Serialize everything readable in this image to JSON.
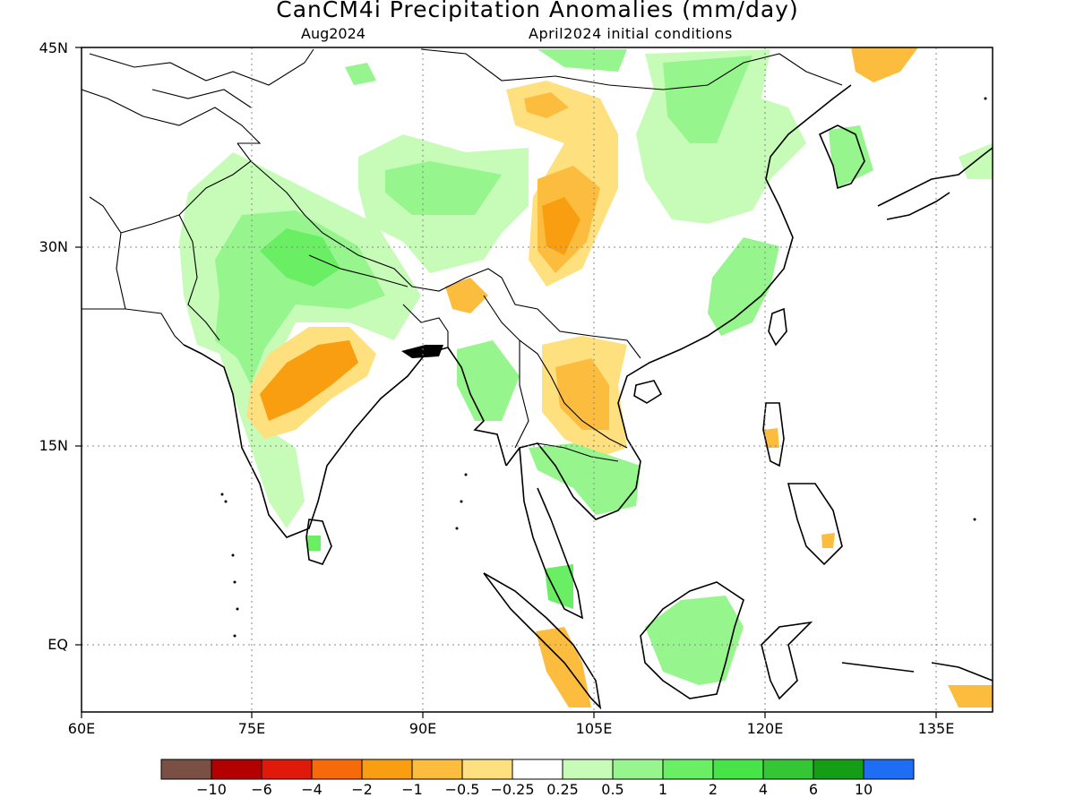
{
  "title": "CanCM4i Precipitation Anomalies (mm/day)",
  "subtitle_left": "Aug2024",
  "subtitle_right": "April2024 initial conditions",
  "axes": {
    "lon_ticks": [
      "60E",
      "75E",
      "90E",
      "105E",
      "120E",
      "135E"
    ],
    "lat_ticks": [
      "45N",
      "30N",
      "15N",
      "EQ"
    ],
    "lon_range": [
      60,
      140
    ],
    "lat_range": [
      -5,
      45
    ]
  },
  "colorbar": {
    "colors": [
      "#7a5044",
      "#b30000",
      "#e01a0a",
      "#f76a0a",
      "#f99e10",
      "#fcbd3e",
      "#fee17e",
      "#ffffff",
      "#c7fcb8",
      "#97f58d",
      "#6aee64",
      "#46e448",
      "#34c634",
      "#149e16",
      "#1e6ef5"
    ],
    "labels": [
      "−10",
      "−6",
      "−4",
      "−2",
      "−1",
      "−0.5",
      "−0.25",
      "0.25",
      "0.5",
      "1",
      "2",
      "4",
      "6",
      "10"
    ]
  },
  "map_features": {
    "coastline_color": "#000000",
    "grid_style": "dotted",
    "anomaly_regions": [
      "positive-northwest-india",
      "negative-central-india",
      "negative-tibet",
      "positive-north-china",
      "negative-laos",
      "positive-borneo",
      "negative-sumatra",
      "positive-east-china",
      "negative-korea-north"
    ]
  }
}
